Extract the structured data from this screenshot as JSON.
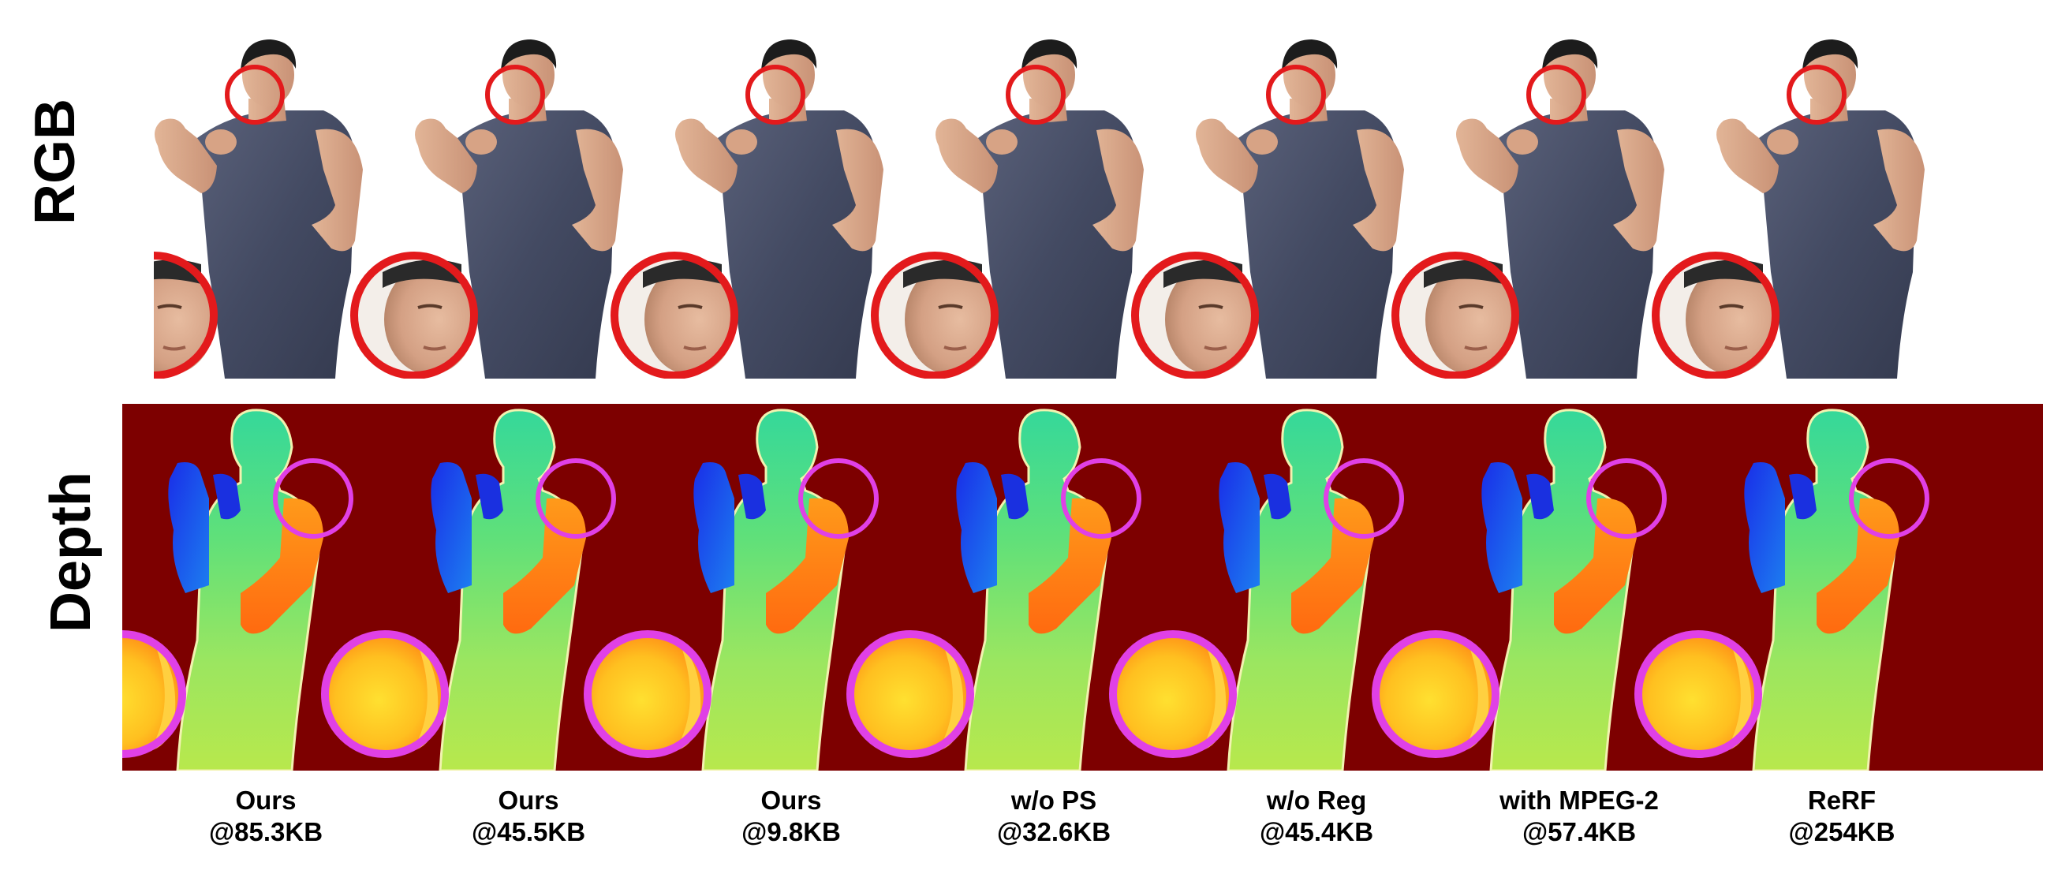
{
  "row_labels": {
    "rgb": "RGB",
    "depth": "Depth"
  },
  "colors": {
    "rgb_zoom_circle": "#e31a1c",
    "depth_zoom_circle": "#e040e6",
    "depth_background": "#7d0000",
    "shirt": "#4a5068",
    "skin": "#d9a98a",
    "hair": "#1c1c1c"
  },
  "methods": [
    {
      "name": "Ours",
      "size": "@85.3KB"
    },
    {
      "name": "Ours",
      "size": "@45.5KB"
    },
    {
      "name": "Ours",
      "size": "@9.8KB"
    },
    {
      "name": "w/o PS",
      "size": "@32.6KB"
    },
    {
      "name": "w/o Reg",
      "size": "@45.4KB"
    },
    {
      "name": "with MPEG-2",
      "size": "@57.4KB"
    },
    {
      "name": "ReRF",
      "size": "@254KB"
    }
  ]
}
